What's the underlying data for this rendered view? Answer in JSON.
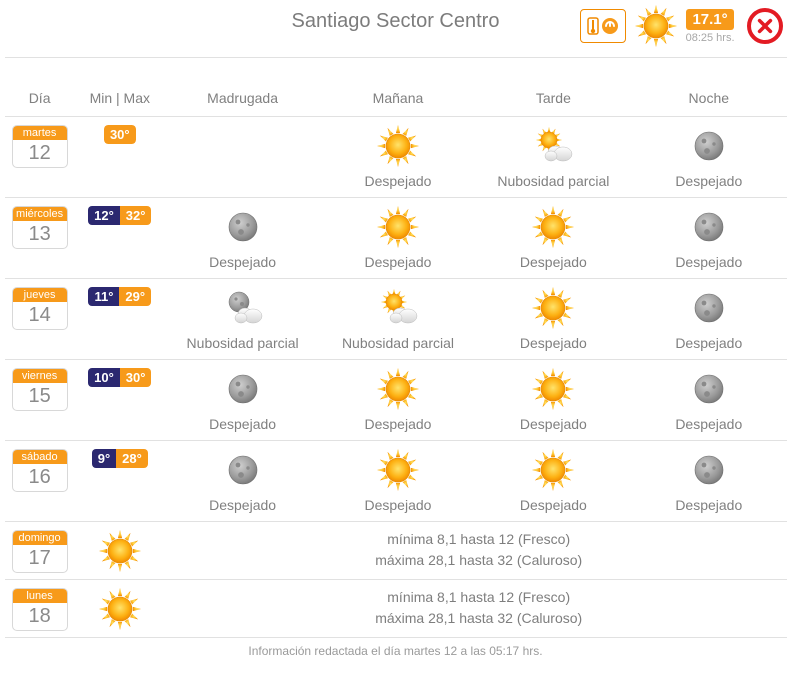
{
  "header": {
    "title": "Santiago Sector Centro",
    "current_temp": "17.1°",
    "current_time": "08:25 hrs.",
    "current_icon": "sun"
  },
  "columns": {
    "day": "Día",
    "minmax": "Min | Max",
    "dawn": "Madrugada",
    "morning": "Mañana",
    "afternoon": "Tarde",
    "night": "Noche"
  },
  "forecast": [
    {
      "dow": "martes",
      "dnum": "12",
      "min": null,
      "max": "30°",
      "dawn": {
        "icon": null,
        "label": ""
      },
      "morning": {
        "icon": "sun",
        "label": "Despejado"
      },
      "afternoon": {
        "icon": "sun-cloud",
        "label": "Nubosidad parcial"
      },
      "night": {
        "icon": "moon",
        "label": "Despejado"
      }
    },
    {
      "dow": "miércoles",
      "dnum": "13",
      "min": "12°",
      "max": "32°",
      "dawn": {
        "icon": "moon",
        "label": "Despejado"
      },
      "morning": {
        "icon": "sun",
        "label": "Despejado"
      },
      "afternoon": {
        "icon": "sun",
        "label": "Despejado"
      },
      "night": {
        "icon": "moon",
        "label": "Despejado"
      }
    },
    {
      "dow": "jueves",
      "dnum": "14",
      "min": "11°",
      "max": "29°",
      "dawn": {
        "icon": "moon-cloud",
        "label": "Nubosidad parcial"
      },
      "morning": {
        "icon": "sun-cloud",
        "label": "Nubosidad parcial"
      },
      "afternoon": {
        "icon": "sun",
        "label": "Despejado"
      },
      "night": {
        "icon": "moon",
        "label": "Despejado"
      }
    },
    {
      "dow": "viernes",
      "dnum": "15",
      "min": "10°",
      "max": "30°",
      "dawn": {
        "icon": "moon",
        "label": "Despejado"
      },
      "morning": {
        "icon": "sun",
        "label": "Despejado"
      },
      "afternoon": {
        "icon": "sun",
        "label": "Despejado"
      },
      "night": {
        "icon": "moon",
        "label": "Despejado"
      }
    },
    {
      "dow": "sábado",
      "dnum": "16",
      "min": "9°",
      "max": "28°",
      "dawn": {
        "icon": "moon",
        "label": "Despejado"
      },
      "morning": {
        "icon": "sun",
        "label": "Despejado"
      },
      "afternoon": {
        "icon": "sun",
        "label": "Despejado"
      },
      "night": {
        "icon": "moon",
        "label": "Despejado"
      }
    }
  ],
  "summary": [
    {
      "dow": "domingo",
      "dnum": "17",
      "icon": "sun",
      "line1": "mínima 8,1 hasta 12 (Fresco)",
      "line2": "máxima 28,1 hasta 32 (Caluroso)"
    },
    {
      "dow": "lunes",
      "dnum": "18",
      "icon": "sun",
      "line1": "mínima 8,1 hasta 12 (Fresco)",
      "line2": "máxima 28,1 hasta 32 (Caluroso)"
    }
  ],
  "footer": "Información redactada el día martes 12 a las 05:17 hrs.",
  "colors": {
    "orange": "#f79a1a",
    "navy": "#2b2870",
    "red": "#e31b23",
    "text": "#808080",
    "border": "#e1e1e1"
  }
}
